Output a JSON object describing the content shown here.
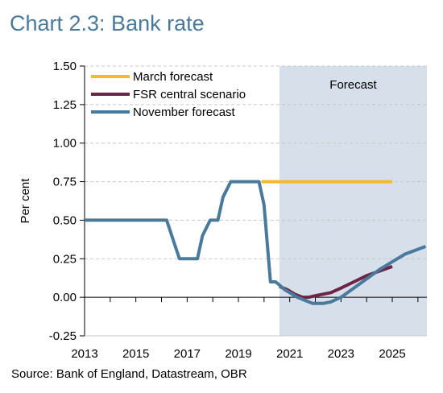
{
  "title": "Chart 2.3: Bank rate",
  "source": "Source: Bank of England, Datastream, OBR",
  "colors": {
    "march": "#f5b82e",
    "fsr": "#6e2447",
    "november": "#4a7a9b",
    "forecast_shade": "#d6dfea",
    "title": "#4a7a9b"
  },
  "chart_data": {
    "type": "line",
    "title": "",
    "xlabel": "",
    "ylabel": "Per cent",
    "xlim": [
      2013.0,
      2026.35
    ],
    "ylim": [
      -0.25,
      1.5
    ],
    "yticks": [
      -0.25,
      0.0,
      0.25,
      0.5,
      0.75,
      1.0,
      1.25,
      1.5
    ],
    "ytick_labels": [
      "-0.25",
      "0.00",
      "0.25",
      "0.50",
      "0.75",
      "1.00",
      "1.25",
      "1.50"
    ],
    "xticks": [
      2013,
      2015,
      2017,
      2019,
      2021,
      2023,
      2025
    ],
    "xtick_labels": [
      "2013",
      "2015",
      "2017",
      "2019",
      "2021",
      "2023",
      "2025"
    ],
    "grid": "horizontal dashed",
    "legend_position": "top-left",
    "forecast_region": {
      "start": 2020.6,
      "end": 2026.35,
      "label": "Forecast"
    },
    "series": [
      {
        "name": "March forecast",
        "color": "#f5b82e",
        "x": [
          2019.9,
          2025.0
        ],
        "y": [
          0.75,
          0.75
        ]
      },
      {
        "name": "FSR central scenario",
        "color": "#6e2447",
        "x": [
          2020.6,
          2020.9,
          2021.2,
          2021.5,
          2021.75,
          2022.0,
          2022.3,
          2022.6,
          2023.0,
          2023.5,
          2024.0,
          2024.5,
          2025.0
        ],
        "y": [
          0.07,
          0.05,
          0.02,
          0.0,
          0.0,
          0.01,
          0.02,
          0.03,
          0.06,
          0.1,
          0.14,
          0.17,
          0.2
        ]
      },
      {
        "name": "November forecast",
        "color": "#4a7a9b",
        "x": [
          2013.0,
          2016.2,
          2016.5,
          2016.7,
          2017.4,
          2017.6,
          2017.9,
          2018.2,
          2018.4,
          2018.7,
          2019.0,
          2019.1,
          2019.8,
          2020.0,
          2020.15,
          2020.25,
          2020.45,
          2020.6,
          2020.8,
          2021.0,
          2021.3,
          2021.6,
          2021.9,
          2022.3,
          2022.6,
          2023.0,
          2023.5,
          2024.0,
          2024.5,
          2025.0,
          2025.5,
          2026.3
        ],
        "y": [
          0.5,
          0.5,
          0.35,
          0.25,
          0.25,
          0.4,
          0.5,
          0.5,
          0.65,
          0.75,
          0.75,
          0.75,
          0.75,
          0.6,
          0.3,
          0.1,
          0.1,
          0.08,
          0.05,
          0.03,
          0.0,
          -0.02,
          -0.04,
          -0.04,
          -0.03,
          0.0,
          0.06,
          0.12,
          0.18,
          0.23,
          0.28,
          0.33
        ]
      }
    ]
  }
}
